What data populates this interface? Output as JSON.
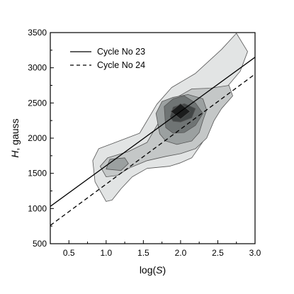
{
  "chart_data": {
    "type": "line",
    "xlabel": {
      "prefix": "log(",
      "var": "S",
      "suffix": ")"
    },
    "ylabel": {
      "var": "H",
      "suffix": ", gauss"
    },
    "xlim": [
      0.25,
      3.0
    ],
    "ylim": [
      500,
      3500
    ],
    "xticks": [
      0.5,
      1.0,
      1.5,
      2.0,
      2.5,
      3.0
    ],
    "xtick_labels": [
      "0.5",
      "1.0",
      "1.5",
      "2.0",
      "2.5",
      "3.0"
    ],
    "yticks": [
      500,
      1000,
      1500,
      2000,
      2500,
      3000,
      3500
    ],
    "ytick_labels": [
      "500",
      "1000",
      "1500",
      "2000",
      "2500",
      "3000",
      "3500"
    ],
    "grid": false,
    "legend_position": "top-left",
    "series": [
      {
        "name": "Cycle No 23",
        "style": "solid",
        "color": "#000000",
        "x": [
          0.25,
          3.0
        ],
        "y": [
          1030,
          3150
        ]
      },
      {
        "name": "Cycle No 24",
        "style": "dashed",
        "color": "#000000",
        "x": [
          0.25,
          3.0
        ],
        "y": [
          760,
          2910
        ]
      }
    ],
    "density_contours": {
      "fill_colors": [
        "#e2e4e4",
        "#c4c7c7",
        "#9ba0a0",
        "#6f7474",
        "#424646",
        "#1b1c1c"
      ],
      "levels": [
        [
          [
            1.0,
            1100
          ],
          [
            0.85,
            1380
          ],
          [
            0.82,
            1680
          ],
          [
            0.9,
            1850
          ],
          [
            1.1,
            1930
          ],
          [
            1.45,
            2070
          ],
          [
            1.68,
            2480
          ],
          [
            1.88,
            2720
          ],
          [
            2.2,
            2920
          ],
          [
            2.55,
            3260
          ],
          [
            2.75,
            3490
          ],
          [
            2.9,
            3230
          ],
          [
            2.8,
            2950
          ],
          [
            2.6,
            2700
          ],
          [
            2.5,
            2520
          ],
          [
            2.4,
            2200
          ],
          [
            2.3,
            1950
          ],
          [
            2.15,
            1720
          ],
          [
            2.0,
            1650
          ],
          [
            1.85,
            1600
          ],
          [
            1.55,
            1570
          ],
          [
            1.35,
            1450
          ],
          [
            1.2,
            1280
          ],
          [
            1.08,
            1120
          ]
        ],
        [
          [
            1.0,
            1450
          ],
          [
            0.92,
            1600
          ],
          [
            1.02,
            1720
          ],
          [
            1.3,
            1810
          ],
          [
            1.55,
            1940
          ],
          [
            1.72,
            2250
          ],
          [
            1.95,
            2580
          ],
          [
            2.15,
            2700
          ],
          [
            2.4,
            2710
          ],
          [
            2.65,
            2750
          ],
          [
            2.7,
            2600
          ],
          [
            2.55,
            2420
          ],
          [
            2.45,
            2250
          ],
          [
            2.35,
            2000
          ],
          [
            2.2,
            1850
          ],
          [
            2.0,
            1780
          ],
          [
            1.8,
            1740
          ],
          [
            1.55,
            1680
          ],
          [
            1.32,
            1580
          ],
          [
            1.15,
            1470
          ]
        ],
        [
          [
            1.0,
            1560
          ],
          [
            1.05,
            1700
          ],
          [
            1.25,
            1720
          ],
          [
            1.3,
            1640
          ],
          [
            1.2,
            1540
          ]
        ],
        [
          [
            1.72,
            2060
          ],
          [
            1.67,
            2350
          ],
          [
            1.75,
            2520
          ],
          [
            1.9,
            2580
          ],
          [
            2.1,
            2620
          ],
          [
            2.3,
            2560
          ],
          [
            2.35,
            2400
          ],
          [
            2.3,
            2250
          ],
          [
            2.25,
            2080
          ],
          [
            2.15,
            1960
          ],
          [
            1.95,
            1910
          ],
          [
            1.8,
            1960
          ]
        ],
        [
          [
            1.8,
            2150
          ],
          [
            1.78,
            2450
          ],
          [
            1.9,
            2560
          ],
          [
            2.05,
            2600
          ],
          [
            2.2,
            2500
          ],
          [
            2.3,
            2350
          ],
          [
            2.2,
            2180
          ],
          [
            2.05,
            2080
          ],
          [
            1.9,
            2070
          ]
        ],
        [
          [
            1.86,
            2300
          ],
          [
            1.9,
            2440
          ],
          [
            2.05,
            2490
          ],
          [
            2.2,
            2420
          ],
          [
            2.15,
            2290
          ],
          [
            2.0,
            2230
          ],
          [
            1.9,
            2240
          ]
        ],
        [
          [
            1.87,
            2380
          ],
          [
            2.0,
            2490
          ],
          [
            2.13,
            2380
          ],
          [
            2.0,
            2270
          ]
        ]
      ]
    },
    "legend": [
      {
        "label": "Cycle No 23",
        "style": "solid"
      },
      {
        "label": "Cycle No 24",
        "style": "dashed"
      }
    ]
  }
}
